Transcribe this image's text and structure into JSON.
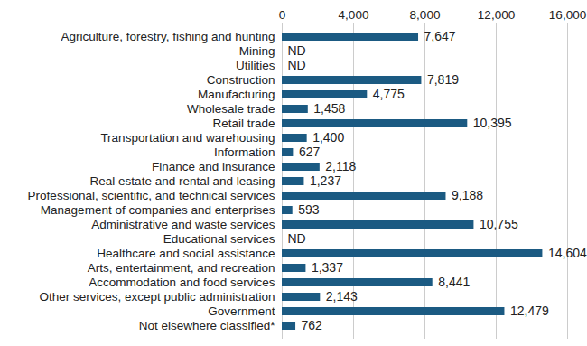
{
  "chart_data": {
    "type": "bar",
    "orientation": "horizontal",
    "categories": [
      "Agriculture, forestry, fishing and hunting",
      "Mining",
      "Utilities",
      "Construction",
      "Manufacturing",
      "Wholesale trade",
      "Retail trade",
      "Transportation and warehousing",
      "Information",
      "Finance and insurance",
      "Real estate and rental and leasing",
      "Professional, scientific, and technical services",
      "Management of companies and enterprises",
      "Administrative and waste services",
      "Educational services",
      "Healthcare and social assistance",
      "Arts, entertainment, and recreation",
      "Accommodation and food services",
      "Other services, except public administration",
      "Government",
      "Not elsewhere classified*"
    ],
    "values": [
      7647,
      null,
      null,
      7819,
      4775,
      1458,
      10395,
      1400,
      627,
      2118,
      1237,
      9188,
      593,
      10755,
      null,
      14604,
      1337,
      8441,
      2143,
      12479,
      762
    ],
    "value_labels": [
      "7,647",
      "ND",
      "ND",
      "7,819",
      "4,775",
      "1,458",
      "10,395",
      "1,400",
      "627",
      "2,118",
      "1,237",
      "9,188",
      "593",
      "10,755",
      "ND",
      "14,604",
      "1,337",
      "8,441",
      "2,143",
      "12,479",
      "762"
    ],
    "data_labels": true,
    "color": "#1b5a82",
    "xlim": [
      0,
      16000
    ],
    "xticks": [
      0,
      {
        "value": 4000,
        "label": "4,000"
      },
      {
        "value": 8000,
        "label": "8,000"
      },
      {
        "value": 12000,
        "label": "12,000"
      },
      {
        "value": 16000,
        "label": "16,000"
      }
    ],
    "grid": true
  }
}
